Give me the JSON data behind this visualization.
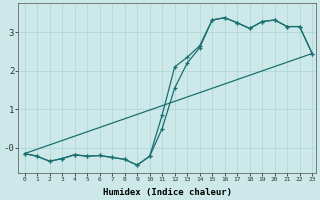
{
  "xlabel": "Humidex (Indice chaleur)",
  "bg_color": "#cce8e8",
  "grid_color": "#b0d8d8",
  "line_color": "#1a7070",
  "x_min": 0,
  "x_max": 23,
  "y_min": -0.65,
  "y_max": 3.75,
  "line1_x": [
    0,
    1,
    2,
    3,
    4,
    5,
    6,
    7,
    8,
    9,
    10,
    11,
    12,
    13,
    14,
    15,
    16,
    17,
    18,
    19,
    20,
    21,
    22,
    23
  ],
  "line1_y": [
    -0.15,
    -0.22,
    -0.35,
    -0.28,
    -0.18,
    -0.22,
    -0.2,
    -0.25,
    -0.3,
    -0.45,
    -0.22,
    0.85,
    2.1,
    2.35,
    2.65,
    3.32,
    3.38,
    3.25,
    3.1,
    3.28,
    3.32,
    3.15,
    3.15,
    2.45
  ],
  "line2_x": [
    0,
    1,
    2,
    3,
    4,
    5,
    6,
    7,
    8,
    9,
    10,
    11,
    12,
    13,
    14,
    15,
    16,
    17,
    18,
    19,
    20,
    21,
    22,
    23
  ],
  "line2_y": [
    -0.15,
    -0.22,
    -0.35,
    -0.28,
    -0.18,
    -0.22,
    -0.2,
    -0.25,
    -0.3,
    -0.45,
    -0.22,
    0.5,
    1.55,
    2.2,
    2.6,
    3.32,
    3.38,
    3.25,
    3.1,
    3.28,
    3.32,
    3.15,
    3.15,
    2.45
  ],
  "line3_x": [
    0,
    23
  ],
  "line3_y": [
    -0.15,
    2.45
  ],
  "yticks": [
    0,
    1,
    2,
    3
  ],
  "ytick_labels": [
    "-0",
    "1",
    "2",
    "3"
  ]
}
